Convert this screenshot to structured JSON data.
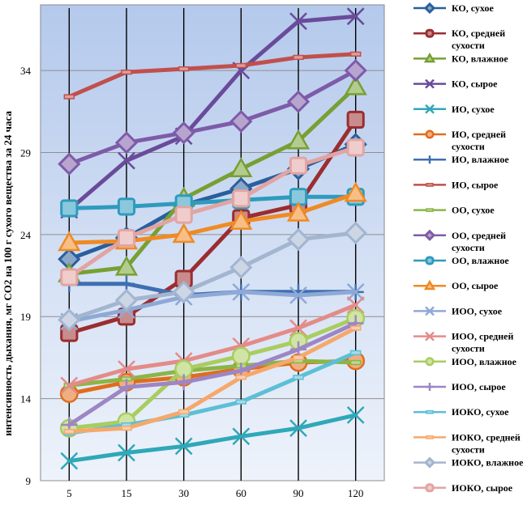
{
  "chart_data": {
    "type": "line",
    "title": "",
    "xlabel": "",
    "ylabel": "интенсивность дыхания, мг CO2 на 100 г сухого вещества за 24 часа",
    "categories": [
      "5",
      "15",
      "30",
      "60",
      "90",
      "120"
    ],
    "yticks": [
      "9",
      "14",
      "19",
      "24",
      "29",
      "34"
    ],
    "ylim": [
      9,
      38
    ],
    "series": [
      {
        "name": "КО, сухое",
        "color": "#2a5f9c",
        "marker": "diamond",
        "values": [
          22.5,
          23.8,
          25.8,
          26.8,
          28,
          29.5
        ]
      },
      {
        "name": "КО, средней сухости",
        "color": "#9b2d30",
        "marker": "square",
        "values": [
          18,
          19,
          21.3,
          25,
          25.8,
          31
        ]
      },
      {
        "name": "КО, влажное",
        "color": "#77a033",
        "marker": "triangle",
        "values": [
          21.6,
          22,
          26.2,
          28,
          29.7,
          33
        ]
      },
      {
        "name": "КО, сырое",
        "color": "#6a4b9a",
        "marker": "x",
        "values": [
          25.5,
          28.5,
          30,
          34,
          37,
          37.3
        ]
      },
      {
        "name": "ИО, сухое",
        "color": "#2fa8b8",
        "marker": "x",
        "values": [
          10.2,
          10.7,
          11.1,
          11.7,
          12.2,
          13
        ]
      },
      {
        "name": "ИО, средней сухости",
        "color": "#e06d1c",
        "marker": "circle",
        "values": [
          14.3,
          15,
          15.3,
          15.8,
          16.2,
          16.3
        ]
      },
      {
        "name": "ИО, влажное",
        "color": "#3f6fb0",
        "marker": "plus",
        "values": [
          21,
          21,
          20.3,
          20.5,
          20.5,
          20.5
        ]
      },
      {
        "name": "ИО, сырое",
        "color": "#c0504d",
        "marker": "dash",
        "values": [
          32.4,
          33.9,
          34.1,
          34.3,
          34.8,
          35
        ]
      },
      {
        "name": "ОО, сухое",
        "color": "#8bb546",
        "marker": "dash",
        "values": [
          14.8,
          15.2,
          15.7,
          16,
          16.3,
          16.2
        ]
      },
      {
        "name": "ОО, средней сухости",
        "color": "#7e5ba8",
        "marker": "diamond",
        "values": [
          28.3,
          29.6,
          30.2,
          30.9,
          32.1,
          34
        ]
      },
      {
        "name": "ОО, влажное",
        "color": "#2e9bbd",
        "marker": "square",
        "values": [
          25.6,
          25.7,
          25.9,
          26.1,
          26.3,
          26.3
        ]
      },
      {
        "name": "ОО, сырое",
        "color": "#f08a24",
        "marker": "triangle",
        "values": [
          23.5,
          23.6,
          24,
          24.8,
          25.3,
          26.5
        ]
      },
      {
        "name": "ИОО, сухое",
        "color": "#8ea9d6",
        "marker": "x",
        "values": [
          18.7,
          19.4,
          20.2,
          20.5,
          20.3,
          20.5
        ]
      },
      {
        "name": "ИОО, средней сухости",
        "color": "#e48b88",
        "marker": "x",
        "values": [
          14.8,
          15.8,
          16.3,
          17.2,
          18.3,
          19.7
        ]
      },
      {
        "name": "ИОО, влажное",
        "color": "#a9cd5e",
        "marker": "circle",
        "values": [
          12.2,
          12.6,
          15.8,
          16.6,
          17.5,
          18.9
        ]
      },
      {
        "name": "ИОО, сырое",
        "color": "#9d86c4",
        "marker": "plus",
        "values": [
          12.4,
          14.7,
          15,
          15.7,
          17,
          18.6
        ]
      },
      {
        "name": "ИОКО, сухое",
        "color": "#5cbfd6",
        "marker": "dash",
        "values": [
          11.9,
          12.4,
          13,
          13.8,
          15.3,
          16.8
        ]
      },
      {
        "name": "ИОКО, средней сухости",
        "color": "#f6a86b",
        "marker": "dash",
        "values": [
          12,
          12.2,
          13.2,
          15.3,
          16.5,
          18.3
        ]
      },
      {
        "name": "ИОКО, влажное",
        "color": "#a3b5cf",
        "marker": "diamond",
        "values": [
          18.8,
          20,
          20.5,
          22,
          23.7,
          24.1
        ]
      },
      {
        "name": "ИОКО, сырое",
        "color": "#e2a4a2",
        "marker": "square",
        "values": [
          21.4,
          23.8,
          25.2,
          26.2,
          28.2,
          29.3
        ]
      }
    ]
  }
}
